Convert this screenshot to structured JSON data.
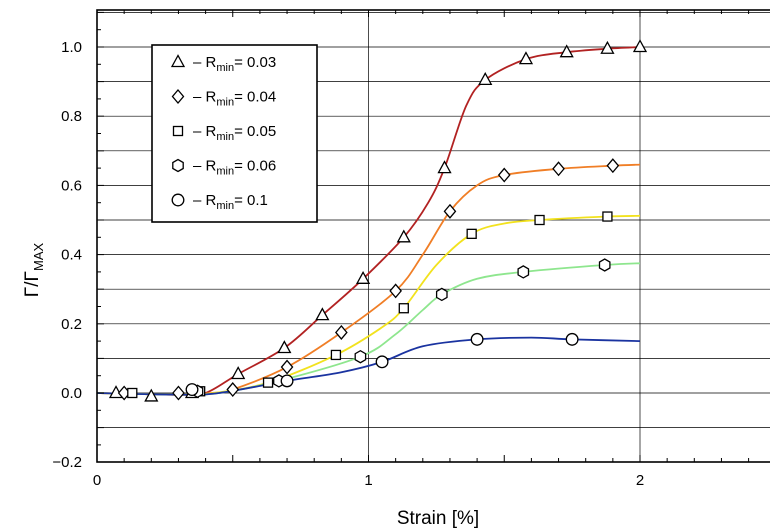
{
  "chart_data": {
    "type": "line",
    "xlabel": "Strain [%]",
    "ylabel_main": "Γ/Γ",
    "ylabel_sub": "MAX",
    "xlim": [
      0,
      2.5
    ],
    "ylim": [
      -0.2,
      1.1
    ],
    "xticks": [
      0,
      1,
      2
    ],
    "xtick_labels": [
      "0",
      "1",
      "2"
    ],
    "yticks": [
      -0.2,
      0.0,
      0.2,
      0.4,
      0.6,
      0.8,
      1.0
    ],
    "ytick_labels": [
      "−0.2",
      "0.0",
      "0.2",
      "0.4",
      "0.6",
      "0.8",
      "1.0"
    ],
    "grid": true,
    "legend_position": "top-left",
    "series": [
      {
        "legend_prefix": "– R",
        "legend_sub": "min",
        "legend_value": "= 0.03",
        "marker": "triangle",
        "color": "#b22222",
        "points": [
          [
            0.07,
            0.0
          ],
          [
            0.2,
            -0.01
          ],
          [
            0.35,
            0.0
          ],
          [
            0.52,
            0.055
          ],
          [
            0.69,
            0.13
          ],
          [
            0.83,
            0.225
          ],
          [
            0.98,
            0.33
          ],
          [
            1.13,
            0.45
          ],
          [
            1.28,
            0.65
          ],
          [
            1.43,
            0.905
          ],
          [
            1.58,
            0.965
          ],
          [
            1.73,
            0.985
          ],
          [
            1.88,
            0.995
          ],
          [
            2.0,
            1.0
          ]
        ],
        "curve": [
          [
            0.0,
            0.0
          ],
          [
            0.3,
            -0.005
          ],
          [
            0.4,
            0.0
          ],
          [
            0.52,
            0.055
          ],
          [
            0.69,
            0.13
          ],
          [
            0.83,
            0.225
          ],
          [
            0.98,
            0.33
          ],
          [
            1.13,
            0.45
          ],
          [
            1.22,
            0.55
          ],
          [
            1.28,
            0.65
          ],
          [
            1.36,
            0.83
          ],
          [
            1.43,
            0.905
          ],
          [
            1.58,
            0.965
          ],
          [
            1.73,
            0.985
          ],
          [
            1.88,
            0.995
          ],
          [
            2.0,
            1.0
          ]
        ]
      },
      {
        "legend_prefix": "– R",
        "legend_sub": "min",
        "legend_value": "= 0.04",
        "marker": "diamond",
        "color": "#f07e26",
        "points": [
          [
            0.1,
            0.0
          ],
          [
            0.3,
            0.0
          ],
          [
            0.5,
            0.01
          ],
          [
            0.7,
            0.075
          ],
          [
            0.9,
            0.175
          ],
          [
            1.1,
            0.295
          ],
          [
            1.3,
            0.525
          ],
          [
            1.5,
            0.63
          ],
          [
            1.7,
            0.648
          ],
          [
            1.9,
            0.657
          ]
        ],
        "curve": [
          [
            0.0,
            0.0
          ],
          [
            0.3,
            -0.005
          ],
          [
            0.42,
            0.0
          ],
          [
            0.5,
            0.01
          ],
          [
            0.7,
            0.075
          ],
          [
            0.9,
            0.175
          ],
          [
            1.1,
            0.295
          ],
          [
            1.2,
            0.4
          ],
          [
            1.3,
            0.525
          ],
          [
            1.4,
            0.6
          ],
          [
            1.5,
            0.63
          ],
          [
            1.7,
            0.648
          ],
          [
            1.9,
            0.657
          ],
          [
            2.0,
            0.66
          ]
        ]
      },
      {
        "legend_prefix": "– R",
        "legend_sub": "min",
        "legend_value": "= 0.05",
        "marker": "square",
        "color": "#f2e21e",
        "points": [
          [
            0.13,
            0.0
          ],
          [
            0.38,
            0.005
          ],
          [
            0.63,
            0.03
          ],
          [
            0.88,
            0.11
          ],
          [
            1.13,
            0.245
          ],
          [
            1.38,
            0.46
          ],
          [
            1.63,
            0.5
          ],
          [
            1.88,
            0.51
          ]
        ],
        "curve": [
          [
            0.0,
            0.0
          ],
          [
            0.3,
            -0.005
          ],
          [
            0.43,
            0.0
          ],
          [
            0.63,
            0.03
          ],
          [
            0.88,
            0.11
          ],
          [
            1.05,
            0.19
          ],
          [
            1.13,
            0.245
          ],
          [
            1.25,
            0.37
          ],
          [
            1.38,
            0.46
          ],
          [
            1.5,
            0.49
          ],
          [
            1.63,
            0.5
          ],
          [
            1.88,
            0.51
          ],
          [
            2.0,
            0.512
          ]
        ]
      },
      {
        "legend_prefix": "– R",
        "legend_sub": "min",
        "legend_value": "= 0.06",
        "marker": "hexagon",
        "color": "#8ee68e",
        "points": [
          [
            0.37,
            0.005
          ],
          [
            0.67,
            0.035
          ],
          [
            0.97,
            0.105
          ],
          [
            1.27,
            0.285
          ],
          [
            1.57,
            0.35
          ],
          [
            1.87,
            0.37
          ]
        ],
        "curve": [
          [
            0.0,
            0.0
          ],
          [
            0.3,
            -0.005
          ],
          [
            0.45,
            0.0
          ],
          [
            0.67,
            0.035
          ],
          [
            0.97,
            0.105
          ],
          [
            1.1,
            0.17
          ],
          [
            1.2,
            0.24
          ],
          [
            1.27,
            0.285
          ],
          [
            1.4,
            0.33
          ],
          [
            1.57,
            0.35
          ],
          [
            1.87,
            0.37
          ],
          [
            2.0,
            0.375
          ]
        ]
      },
      {
        "legend_prefix": "– R",
        "legend_sub": "min",
        "legend_value": "=  0.1",
        "marker": "circle",
        "color": "#1a33a0",
        "points": [
          [
            0.35,
            0.01
          ],
          [
            0.7,
            0.035
          ],
          [
            1.05,
            0.09
          ],
          [
            1.4,
            0.155
          ],
          [
            1.75,
            0.155
          ]
        ],
        "curve": [
          [
            0.0,
            0.0
          ],
          [
            0.3,
            -0.005
          ],
          [
            0.45,
            0.0
          ],
          [
            0.7,
            0.035
          ],
          [
            0.9,
            0.06
          ],
          [
            1.05,
            0.09
          ],
          [
            1.2,
            0.135
          ],
          [
            1.4,
            0.155
          ],
          [
            1.6,
            0.16
          ],
          [
            1.75,
            0.155
          ],
          [
            2.0,
            0.15
          ]
        ]
      }
    ]
  }
}
